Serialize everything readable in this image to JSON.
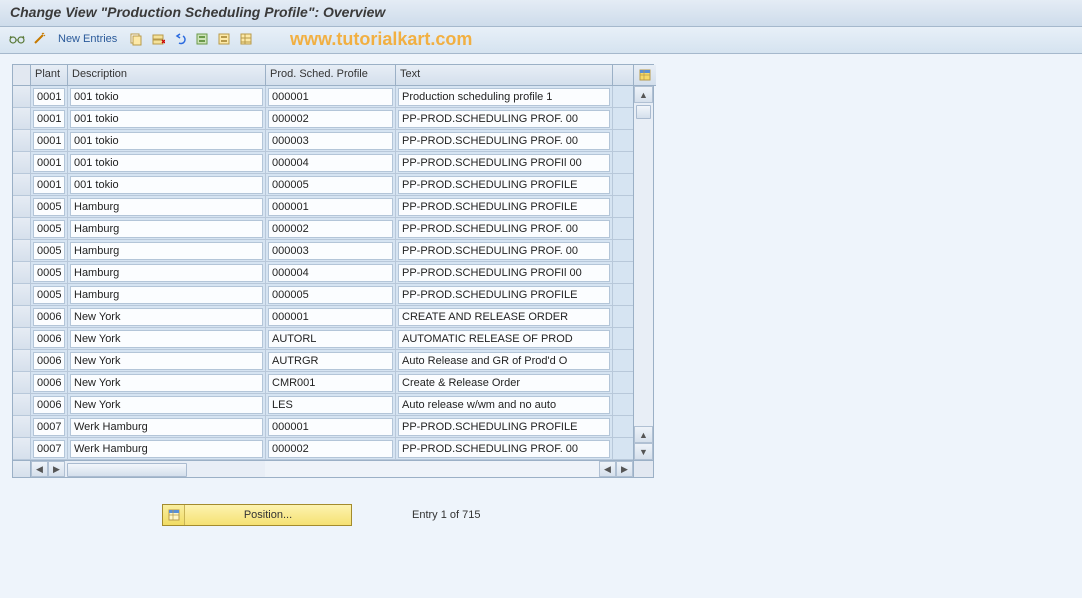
{
  "title": "Change View \"Production Scheduling Profile\": Overview",
  "toolbar": {
    "new_entries": "New Entries"
  },
  "watermark": "www.tutorialkart.com",
  "columns": {
    "plant": "Plant",
    "description": "Description",
    "profile": "Prod. Sched. Profile",
    "text": "Text"
  },
  "rows": [
    {
      "plant": "0001",
      "desc": "001 tokio",
      "prof": "000001",
      "text": "Production scheduling profile 1"
    },
    {
      "plant": "0001",
      "desc": "001 tokio",
      "prof": "000002",
      "text": "PP-PROD.SCHEDULING PROF. 00"
    },
    {
      "plant": "0001",
      "desc": "001 tokio",
      "prof": "000003",
      "text": "PP-PROD.SCHEDULING PROF. 00"
    },
    {
      "plant": "0001",
      "desc": "001 tokio",
      "prof": "000004",
      "text": "PP-PROD.SCHEDULING PROFIl 00"
    },
    {
      "plant": "0001",
      "desc": "001 tokio",
      "prof": "000005",
      "text": "PP-PROD.SCHEDULING PROFILE"
    },
    {
      "plant": "0005",
      "desc": "Hamburg",
      "prof": "000001",
      "text": "PP-PROD.SCHEDULING PROFILE"
    },
    {
      "plant": "0005",
      "desc": "Hamburg",
      "prof": "000002",
      "text": "PP-PROD.SCHEDULING PROF. 00"
    },
    {
      "plant": "0005",
      "desc": "Hamburg",
      "prof": "000003",
      "text": "PP-PROD.SCHEDULING PROF. 00"
    },
    {
      "plant": "0005",
      "desc": "Hamburg",
      "prof": "000004",
      "text": "PP-PROD.SCHEDULING PROFIl 00"
    },
    {
      "plant": "0005",
      "desc": "Hamburg",
      "prof": "000005",
      "text": "PP-PROD.SCHEDULING PROFILE"
    },
    {
      "plant": "0006",
      "desc": "New York",
      "prof": "000001",
      "text": "CREATE AND RELEASE ORDER"
    },
    {
      "plant": "0006",
      "desc": "New York",
      "prof": "AUTORL",
      "text": "AUTOMATIC RELEASE OF PROD"
    },
    {
      "plant": "0006",
      "desc": "New York",
      "prof": "AUTRGR",
      "text": "Auto Release and GR of Prod'd O"
    },
    {
      "plant": "0006",
      "desc": "New York",
      "prof": "CMR001",
      "text": "Create & Release Order"
    },
    {
      "plant": "0006",
      "desc": "New York",
      "prof": "LES",
      "text": "Auto release w/wm and no auto"
    },
    {
      "plant": "0007",
      "desc": "Werk Hamburg",
      "prof": "000001",
      "text": "PP-PROD.SCHEDULING PROFILE"
    },
    {
      "plant": "0007",
      "desc": "Werk Hamburg",
      "prof": "000002",
      "text": "PP-PROD.SCHEDULING PROF. 00"
    }
  ],
  "footer": {
    "position_label": "Position...",
    "entry_text": "Entry 1 of 715"
  },
  "colors": {
    "header_grad_top": "#e4ecf5",
    "header_grad_bot": "#cedceb",
    "grid_border": "#9bb0c6",
    "cell_bg": "#fbfdff",
    "btn_yellow_top": "#fdf3b0",
    "btn_yellow_bot": "#f5e173",
    "watermark": "#f5a623"
  }
}
